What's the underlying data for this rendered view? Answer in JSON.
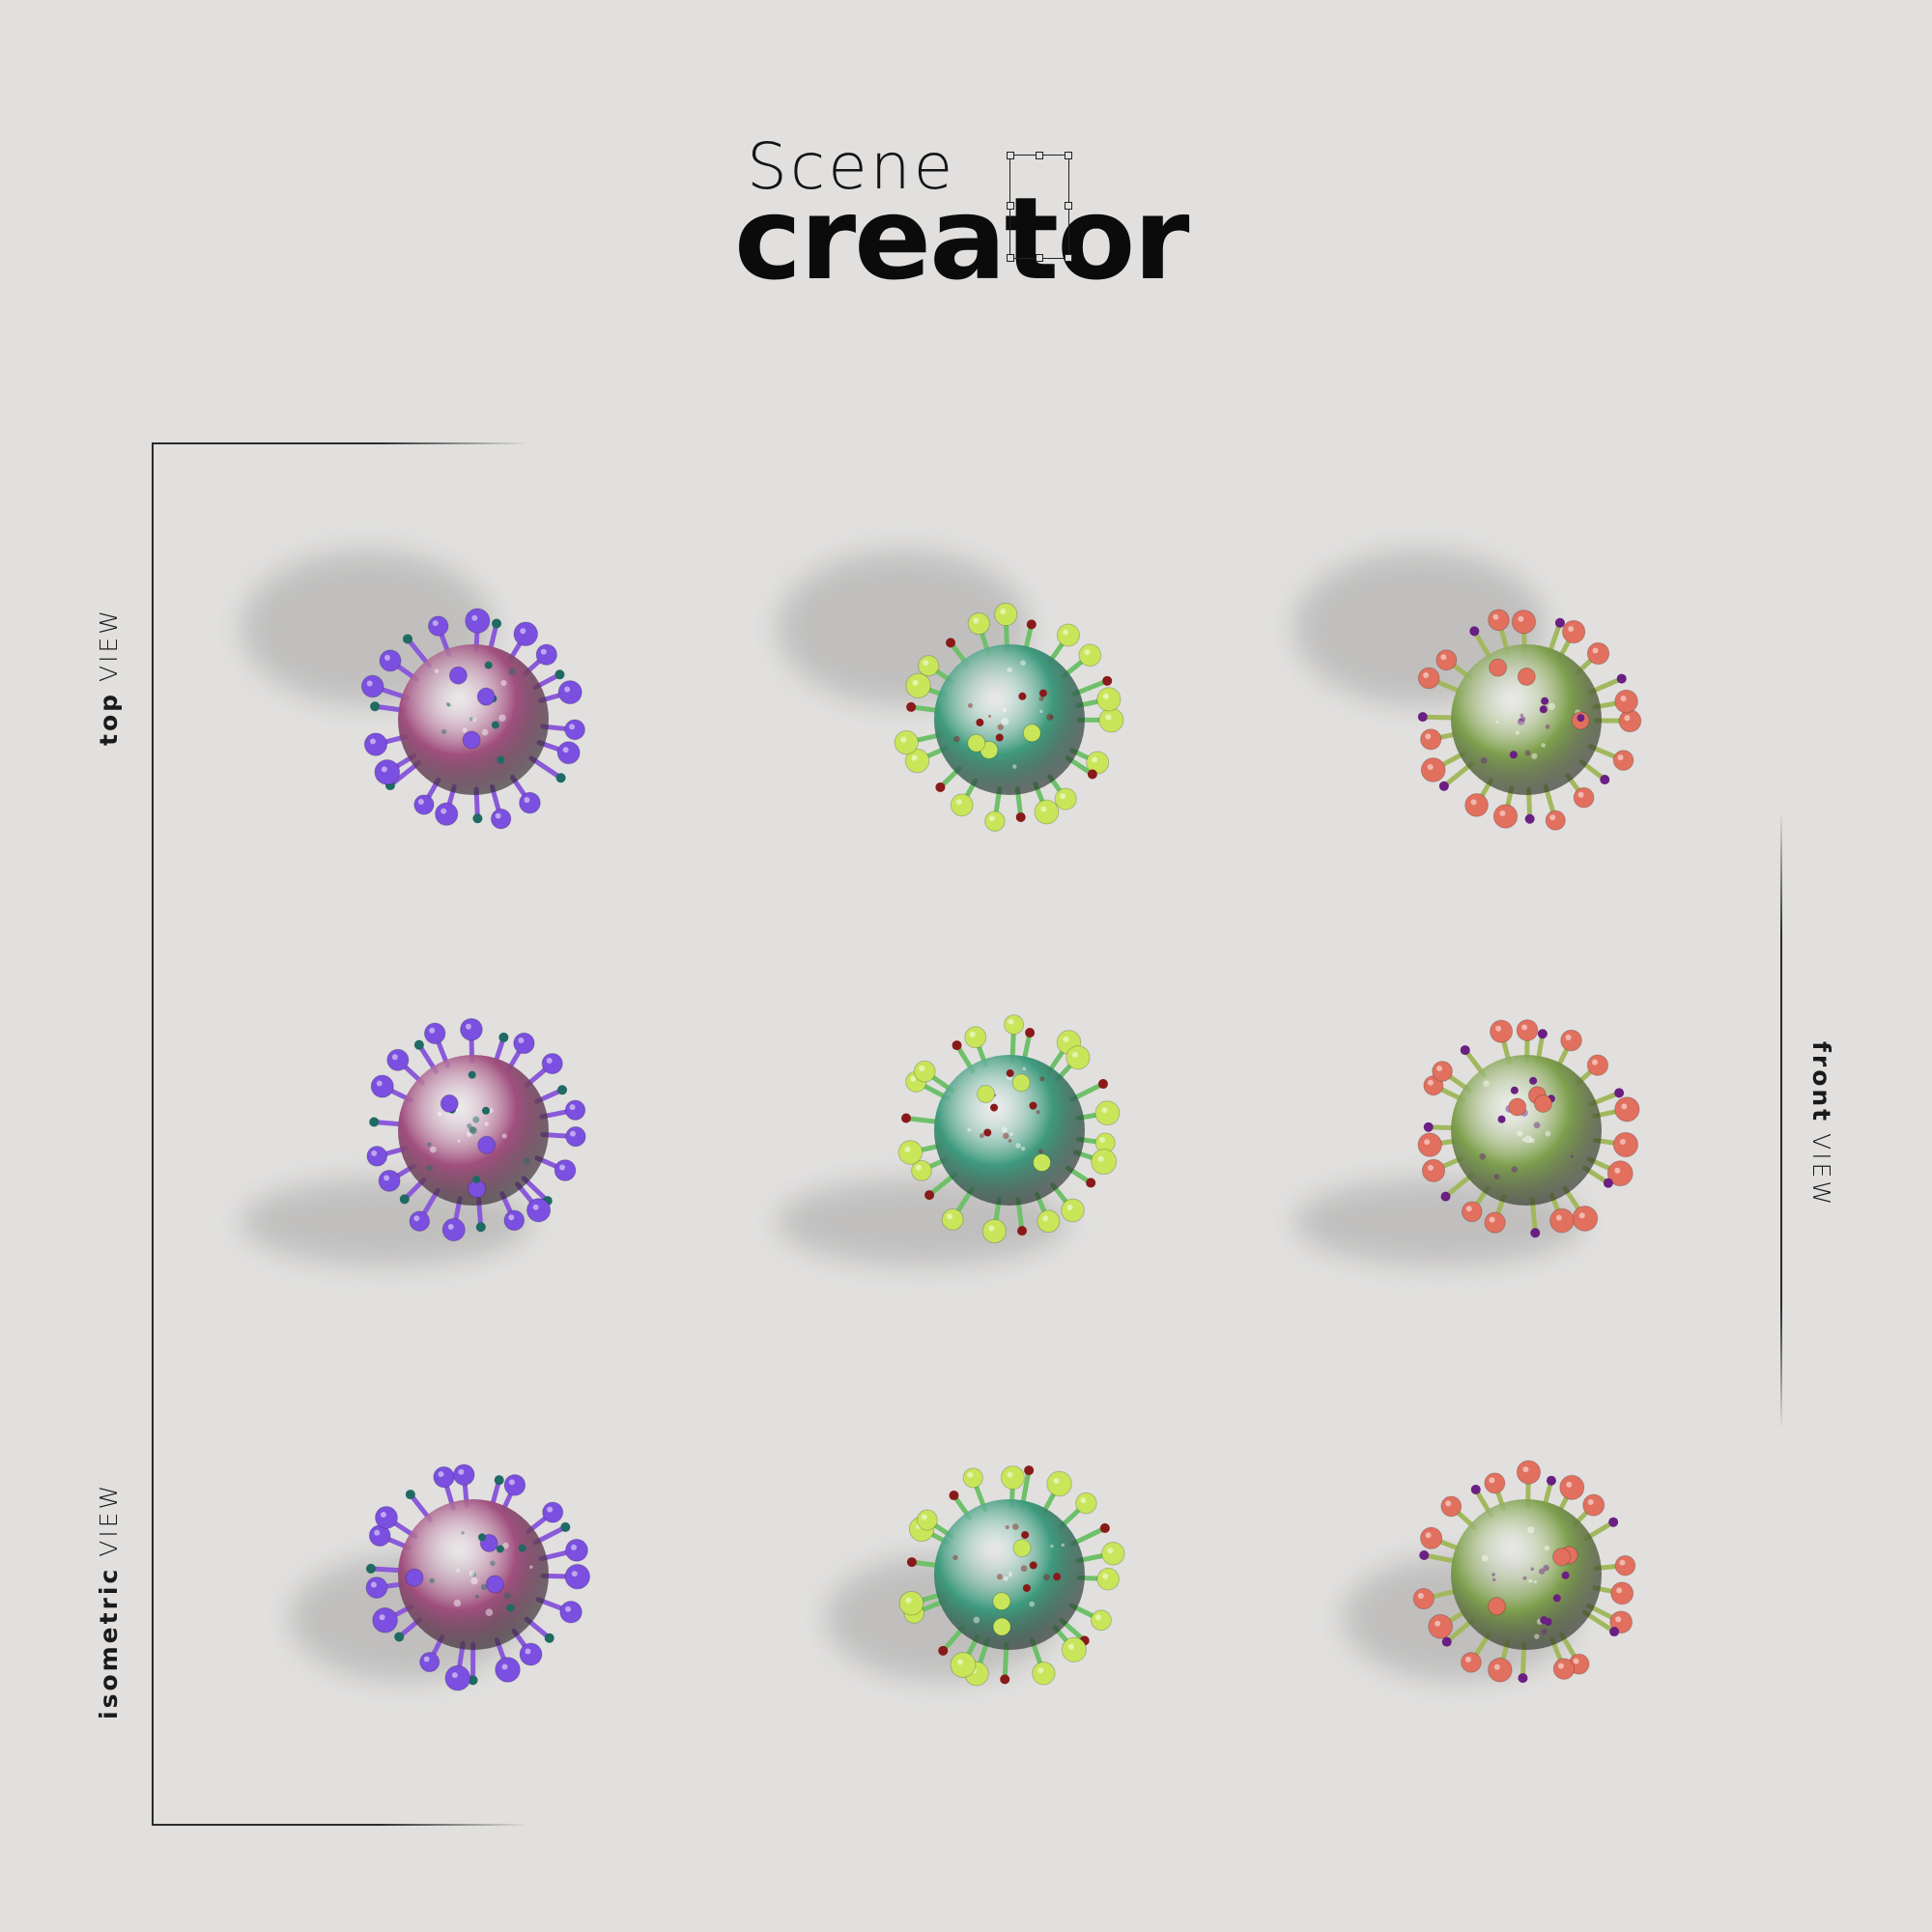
{
  "logo": {
    "line1": "Scene",
    "line2": "creator"
  },
  "labels": {
    "top_bold": "top",
    "top_thin": "VIEW",
    "front_bold": "front",
    "front_thin": "VIEW",
    "iso_bold": "isometric",
    "iso_thin": "VIEW"
  },
  "colors": {
    "background": "#e1e0df",
    "purple_body": "#a04f7e",
    "purple_spike": "#8a5ad8",
    "purple_tip": "#7b4fe0",
    "purple_pin": "#1f6a62",
    "teal_body": "#3e9a7d",
    "teal_spike": "#6fc06a",
    "teal_tip": "#c9e65a",
    "teal_pin": "#8a1a1a",
    "olive_body": "#7fa04e",
    "olive_spike": "#a2b85e",
    "olive_tip": "#e2705f",
    "olive_pin": "#6a1f82"
  }
}
